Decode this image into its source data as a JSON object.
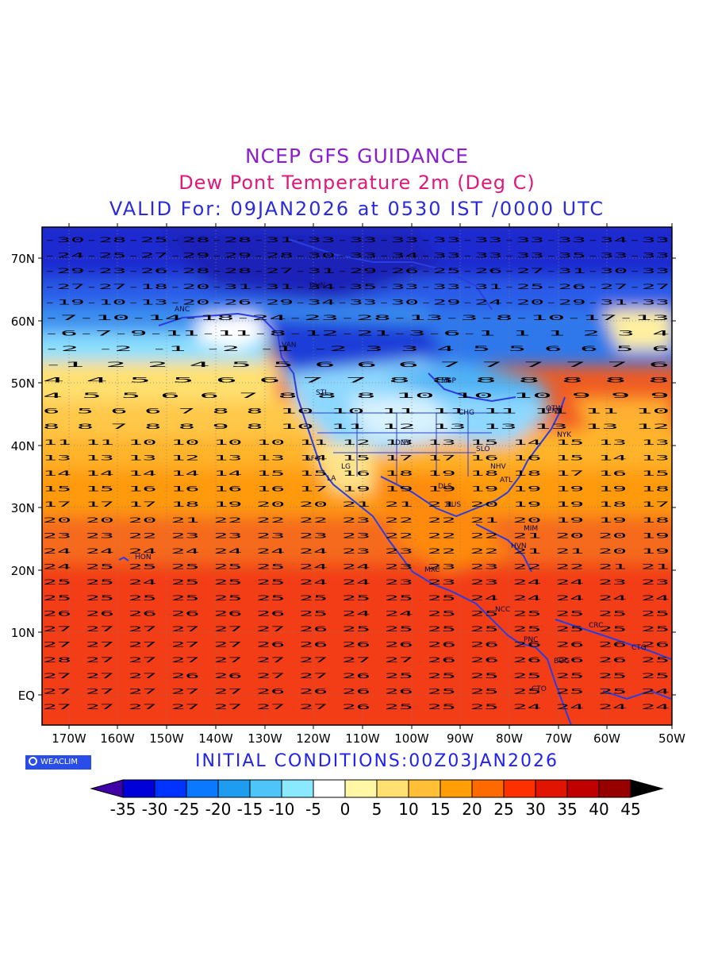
{
  "header": {
    "line1": "NCEP GFS GUIDANCE",
    "line2": "Dew Pont Temperature 2m (Deg C)",
    "line3": "VALID For: 09JAN2026 at 0530 IST /0000 UTC",
    "color1": "#8a1fd0",
    "color2": "#e0187a",
    "color3": "#2b2bd8"
  },
  "footer": {
    "initial_conditions": "INITIAL CONDITIONS:00Z03JAN2026",
    "logo_text": "WEACLIM"
  },
  "map": {
    "lat_labels": [
      "70N",
      "60N",
      "50N",
      "40N",
      "30N",
      "20N",
      "10N",
      "EQ"
    ],
    "lon_labels": [
      "170W",
      "160W",
      "150W",
      "140W",
      "130W",
      "120W",
      "110W",
      "100W",
      "90W",
      "80W",
      "70W",
      "60W",
      "50W"
    ],
    "city_labels": [
      "ANC",
      "DUN",
      "VAN",
      "STL",
      "LG",
      "SFO",
      "LA",
      "DNV",
      "DLS",
      "HUS",
      "MSP",
      "CHG",
      "SLO",
      "NHV",
      "ATL",
      "OTW",
      "NYK",
      "MIM",
      "HVN",
      "MXC",
      "HON",
      "NCC",
      "PNC",
      "BOG",
      "CRC",
      "CTG",
      "CTO",
      "ENI"
    ],
    "regions": [
      {
        "name": "arctic-deep",
        "color": "#1d2bd0"
      },
      {
        "name": "ocean-warm",
        "color": "#f05020"
      }
    ],
    "value_rows": [
      "-30-28-25-28-28-31-33-33-33-33-33-33-33-34-33",
      "-24-25-27-29-29-28-30-33-34-33-33-33-35-33-33",
      "-29-23-26-28-28-27-31-29-26-25-26-27-31-30-33",
      "-27-27-18-20-31-31-34-35-33-33-31-25-26-27-27",
      "-19-10-13-20-26-29-34-33-30-29-24-20-29-31-33",
      "-7-10-14-18-24-23-28-13-3-8-10-17-13",
      "-6-7-9-11-11-8-12-21-3-6-1 1 1 2 3 4",
      "-2 -2 -1 -2 -1 -2 3 3 4 5 5 6 6 5 6",
      "-1 2 2 4 5 5 6 6 6 7 7 7 7 7 6",
      "4 4 5 5 6 6 7 7 8 8 8 8 8 8 8",
      "4 5 5 6 6 7 8 8 8 10 10 10 9 9 9",
      "6 5 6 6 7 8 8 10 10 11 11 11 11 11 10",
      "8 8 7 8 8 9 8 10 11 12 13 13 13 13 12",
      "11 11 10 10 10 10 11 12 13 13 15 14 15 13 13",
      "13 13 13 12 13 13 14 15 17 17 16 16 15 14 13",
      "14 14 14 14 14 15 15 16 18 19 18 18 17 16 15",
      "15 15 16 16 16 16 17 19 19 19 19 19 19 19 18",
      "17 17 17 18 19 20 20 21 21 21 20 19 19 18 17",
      "20 20 20 21 22 22 22 23 22 22 21 20 19 19 18",
      "23 23 22 23 23 23 23 23 22 22 22 21 20 20 19",
      "24 24 24 24 24 24 24 23 23 22 22 21 21 20 19",
      "24 25 25 25 25 25 24 24 23 23 23 22 22 21 21",
      "25 25 24 25 25 25 24 24 23 23 23 24 24 23 23",
      "25 25 25 25 25 25 25 25 25 25 24 24 24 24 24",
      "26 26 26 26 26 26 25 24 24 25 25 25 25 25 25",
      "27 27 27 27 27 27 26 25 25 25 25 25 25 25 25",
      "27 27 27 27 27 26 26 26 26 26 26 26 26 26 26",
      "28 27 27 27 27 27 27 27 27 26 26 26 26 26 25",
      "27 27 27 26 26 27 27 26 25 25 25 25 25 25 25",
      "27 27 27 27 27 26 26 26 26 25 25 25 25 25 24",
      "27 27 27 27 27 27 27 26 25 25 25 24 24 24 24"
    ]
  },
  "colorbar": {
    "labels": [
      "-35",
      "-30",
      "-25",
      "-20",
      "-15",
      "-10",
      "-5",
      "0",
      "5",
      "10",
      "15",
      "20",
      "25",
      "30",
      "35",
      "40",
      "45"
    ],
    "colors": [
      "#3f00a8",
      "#0000d8",
      "#0033ff",
      "#0a78ff",
      "#1e9cf0",
      "#4ec4f8",
      "#8ae9ff",
      "#ffffff",
      "#fff7a6",
      "#ffe070",
      "#ffc038",
      "#ff9e06",
      "#ff6a00",
      "#ff3000",
      "#e01400",
      "#c00000",
      "#980000",
      "#000000"
    ]
  }
}
